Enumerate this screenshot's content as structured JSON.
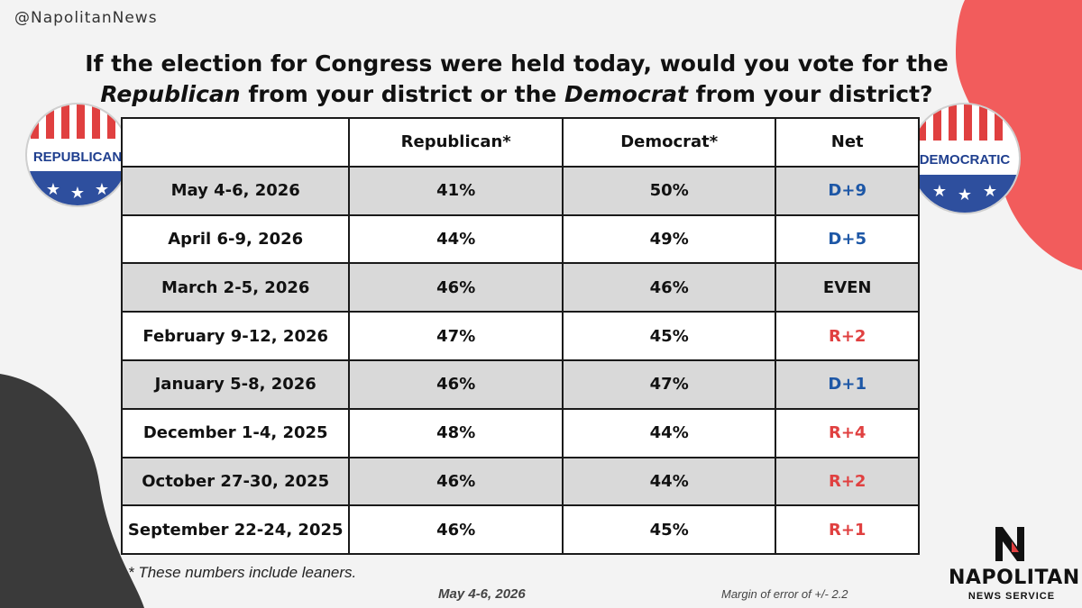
{
  "handle": "@NapolitanNews",
  "title": {
    "line1": "If the election for Congress were held today, would you vote for the",
    "line2_a": "Republican",
    "line2_b": " from your district or the ",
    "line2_c": "Democrat",
    "line2_d": " from your district?"
  },
  "badges": {
    "left": "REPUBLICAN",
    "right": "DEMOCRATIC"
  },
  "table": {
    "headers": [
      "",
      "Republican*",
      "Democrat*",
      "Net"
    ],
    "rows": [
      {
        "date": "May 4-6, 2026",
        "rep": "41%",
        "dem": "50%",
        "net": "D+9",
        "party": "d"
      },
      {
        "date": "April 6-9, 2026",
        "rep": "44%",
        "dem": "49%",
        "net": "D+5",
        "party": "d"
      },
      {
        "date": "March 2-5, 2026",
        "rep": "46%",
        "dem": "46%",
        "net": "EVEN",
        "party": "e"
      },
      {
        "date": "February 9-12, 2026",
        "rep": "47%",
        "dem": "45%",
        "net": "R+2",
        "party": "r"
      },
      {
        "date": "January 5-8, 2026",
        "rep": "46%",
        "dem": "47%",
        "net": "D+1",
        "party": "d"
      },
      {
        "date": "December 1-4, 2025",
        "rep": "48%",
        "dem": "44%",
        "net": "R+4",
        "party": "r"
      },
      {
        "date": "October 27-30, 2025",
        "rep": "46%",
        "dem": "44%",
        "net": "R+2",
        "party": "r"
      },
      {
        "date": "September 22-24, 2025",
        "rep": "46%",
        "dem": "45%",
        "net": "R+1",
        "party": "r"
      }
    ]
  },
  "footnote": "* These numbers include leaners.",
  "footer_date": "May 4-6, 2026",
  "margin_of_error": "Margin of error of +/- 2.2",
  "logo": {
    "name": "NAPOLITAN",
    "sub": "NEWS SERVICE"
  },
  "colors": {
    "democrat": "#1d57a6",
    "republican": "#e04040",
    "accent_red": "#f25c5c",
    "dark_blob": "#3a3a3a"
  }
}
